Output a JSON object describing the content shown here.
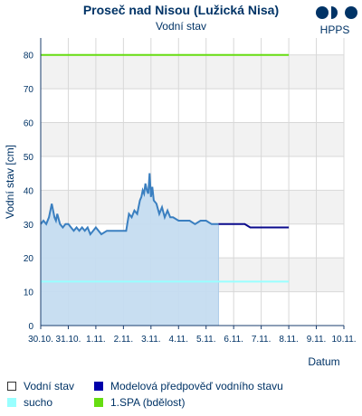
{
  "header": {
    "title": "Proseč nad Nisou (Lužická Nisa)",
    "subtitle": "Vodní stav",
    "logo_text": "HPPS"
  },
  "chart_data": {
    "type": "line",
    "title": "Proseč nad Nisou (Lužická Nisa)",
    "subtitle": "Vodní stav",
    "xlabel": "Datum",
    "ylabel": "Vodní stav [cm]",
    "ylim": [
      0,
      85
    ],
    "yticks": [
      0,
      10,
      20,
      30,
      40,
      50,
      60,
      70,
      80
    ],
    "xlim": [
      0,
      11
    ],
    "xticks": [
      "30.10.",
      "31.10.",
      "1.11.",
      "2.11.",
      "3.11.",
      "4.11.",
      "5.11.",
      "6.11.",
      "7.11.",
      "8.11.",
      "9.11.",
      "10.11."
    ],
    "grid": true,
    "bands": "alternating grey/white 10 cm bands",
    "series": [
      {
        "name": "Vodní stav",
        "style": "area",
        "color": "#3a7fc0",
        "fill": "#c5dcf0",
        "x": [
          0.0,
          0.1,
          0.2,
          0.3,
          0.4,
          0.5,
          0.55,
          0.6,
          0.7,
          0.8,
          0.9,
          1.0,
          1.1,
          1.2,
          1.3,
          1.4,
          1.5,
          1.6,
          1.7,
          1.8,
          1.9,
          2.0,
          2.2,
          2.4,
          2.6,
          2.8,
          3.0,
          3.1,
          3.2,
          3.3,
          3.4,
          3.5,
          3.6,
          3.65,
          3.7,
          3.75,
          3.8,
          3.85,
          3.9,
          3.95,
          4.0,
          4.05,
          4.1,
          4.2,
          4.3,
          4.4,
          4.5,
          4.6,
          4.7,
          4.8,
          5.0,
          5.2,
          5.4,
          5.6,
          5.8,
          6.0,
          6.2,
          6.35,
          6.45
        ],
        "values": [
          30,
          31,
          30,
          32,
          36,
          32,
          31,
          33,
          30,
          29,
          30,
          30,
          29,
          28,
          29,
          28,
          29,
          28,
          29,
          27,
          28,
          29,
          27,
          28,
          28,
          28,
          28,
          28,
          33,
          32,
          34,
          33,
          37,
          38,
          40,
          39,
          42,
          40,
          39,
          45,
          38,
          41,
          37,
          36,
          33,
          35,
          32,
          34,
          32,
          32,
          31,
          31,
          31,
          30,
          31,
          31,
          30,
          30,
          30
        ]
      },
      {
        "name": "Modelová předpověď vodního stavu",
        "style": "line",
        "color": "#0a0a8c",
        "x": [
          6.45,
          7.0,
          7.4,
          7.6,
          8.0,
          9.0
        ],
        "values": [
          30,
          30,
          30,
          29,
          29,
          29
        ]
      },
      {
        "name": "sucho",
        "style": "threshold",
        "color": "#99ffff",
        "x": [
          0,
          9
        ],
        "values": [
          13,
          13
        ]
      },
      {
        "name": "1.SPA (bdělost)",
        "style": "threshold",
        "color": "#66dd11",
        "x": [
          0,
          9
        ],
        "values": [
          80,
          80
        ]
      }
    ]
  },
  "legend": {
    "items": [
      {
        "label": "Vodní stav",
        "color": "#ffffff",
        "border": "#333333"
      },
      {
        "label": "Modelová předpověď vodního stavu",
        "color": "#0000aa",
        "border": "#0000aa"
      },
      {
        "label": "sucho",
        "color": "#99ffff",
        "border": "#99ffff"
      },
      {
        "label": "1.SPA (bdělost)",
        "color": "#66dd11",
        "border": "#66dd11"
      }
    ]
  },
  "colors": {
    "text": "#003366",
    "band_grey": "#f2f2f2",
    "grid": "#d8d8d8",
    "axis": "#1a3d6e"
  }
}
